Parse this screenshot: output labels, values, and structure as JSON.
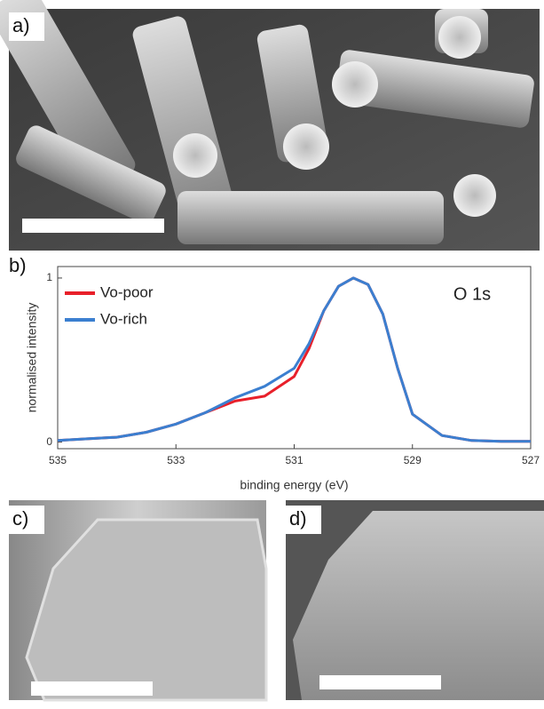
{
  "panel_labels": [
    "a)",
    "b)",
    "c)",
    "d)"
  ],
  "chart_data": {
    "type": "line",
    "annotation": "O 1s",
    "x_label": "binding energy (eV)",
    "y_label": "normalised intensity",
    "x": [
      535,
      534.5,
      534,
      533.5,
      533,
      532.5,
      532,
      531.5,
      531,
      530.75,
      530.5,
      530.25,
      530,
      529.75,
      529.5,
      529.25,
      529,
      528.5,
      528,
      527.5,
      527
    ],
    "series": [
      {
        "name": "Vo-poor",
        "color": "#e8202a",
        "values": [
          0.01,
          0.02,
          0.03,
          0.06,
          0.11,
          0.18,
          0.25,
          0.28,
          0.4,
          0.57,
          0.8,
          0.95,
          1.0,
          0.96,
          0.78,
          0.45,
          0.17,
          0.04,
          0.01,
          0.005,
          0.005
        ]
      },
      {
        "name": "Vo-rich",
        "color": "#3b7fd0",
        "values": [
          0.01,
          0.02,
          0.03,
          0.06,
          0.11,
          0.18,
          0.27,
          0.34,
          0.45,
          0.6,
          0.8,
          0.95,
          1.0,
          0.96,
          0.78,
          0.45,
          0.17,
          0.04,
          0.01,
          0.005,
          0.005
        ]
      }
    ],
    "xlim": [
      535,
      527
    ],
    "xticks": [
      535,
      533,
      531,
      529,
      527
    ],
    "ylim": [
      -0.04,
      1.07
    ],
    "yticks": [
      0,
      1
    ],
    "legend": "upper left"
  }
}
